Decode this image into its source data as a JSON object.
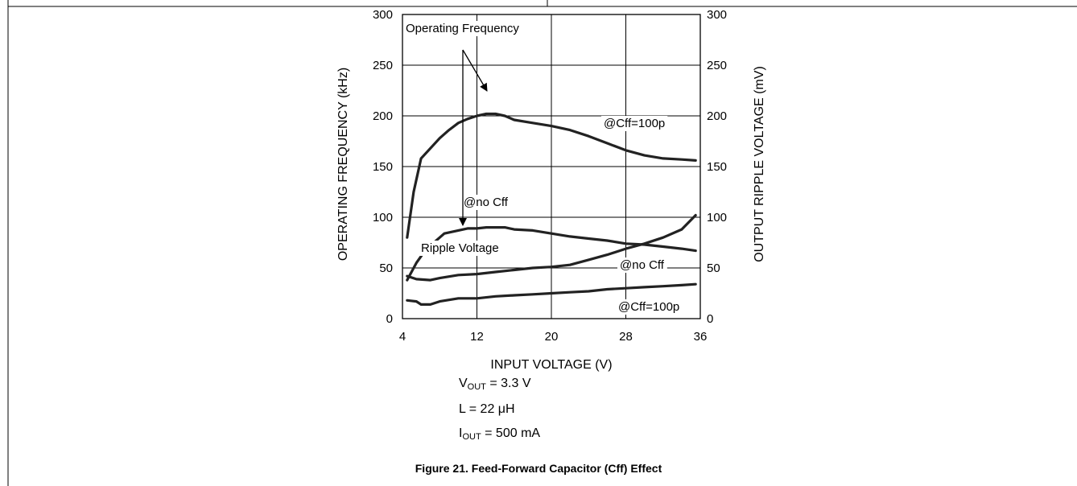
{
  "chart_data": {
    "type": "line",
    "xlabel": "INPUT VOLTAGE (V)",
    "ylabel_left": "OPERATING FREQUENCY (kHz)",
    "ylabel_right": "OUTPUT RIPPLE VOLTAGE (mV)",
    "xlim": [
      4,
      36
    ],
    "ylim": [
      0,
      300
    ],
    "x_ticks": [
      "4",
      "12",
      "20",
      "28",
      "36"
    ],
    "y_ticks": [
      "0",
      "50",
      "100",
      "150",
      "200",
      "250",
      "300"
    ],
    "grid": true,
    "series": [
      {
        "name": "@Cff=100p",
        "group": "Operating Frequency",
        "x": [
          4.5,
          5.2,
          6,
          7,
          8,
          9,
          10,
          11,
          12,
          13,
          14,
          15,
          16,
          18,
          20,
          22,
          24,
          26,
          28,
          30,
          32,
          34,
          35.5
        ],
        "y": [
          80,
          125,
          158,
          168,
          178,
          186,
          193,
          197,
          200,
          202,
          202,
          200,
          196,
          193,
          190,
          186,
          180,
          173,
          166,
          161,
          158,
          157,
          156
        ]
      },
      {
        "name": "@no Cff",
        "group": "Operating Frequency",
        "x": [
          4.5,
          5.5,
          6.5,
          7.5,
          8.5,
          10,
          11,
          12,
          13,
          14,
          15,
          16,
          18,
          20,
          22,
          24,
          26,
          28,
          30,
          32,
          34,
          35.5
        ],
        "y": [
          38,
          55,
          68,
          76,
          84,
          87,
          89,
          89,
          90,
          90,
          90,
          88,
          87,
          84,
          81,
          79,
          77,
          74,
          73,
          71,
          69,
          67
        ]
      },
      {
        "name": "@no Cff",
        "group": "Ripple Voltage",
        "x": [
          4.5,
          5.5,
          7,
          8,
          10,
          12,
          14,
          16,
          18,
          20,
          22,
          24,
          26,
          28,
          30,
          32,
          34,
          35.5
        ],
        "y": [
          42,
          39,
          38,
          40,
          43,
          44,
          46,
          48,
          50,
          51,
          53,
          58,
          63,
          69,
          74,
          80,
          88,
          102
        ]
      },
      {
        "name": "@Cff=100p",
        "group": "Ripple Voltage",
        "x": [
          4.5,
          5.5,
          6,
          7,
          8,
          10,
          12,
          14,
          16,
          18,
          20,
          22,
          24,
          26,
          28,
          30,
          32,
          34,
          35.5
        ],
        "y": [
          18,
          17,
          14,
          14,
          17,
          20,
          20,
          22,
          23,
          24,
          25,
          26,
          27,
          29,
          30,
          31,
          32,
          33,
          34
        ]
      }
    ],
    "annotations": [
      "Operating Frequency",
      "Ripple Voltage"
    ]
  },
  "conditions": {
    "vout": {
      "sym": "V",
      "sub": "OUT",
      "rest": " = 3.3 V"
    },
    "l": "L = 22 μH",
    "iout": {
      "sym": "I",
      "sub": "OUT",
      "rest": " = 500 mA"
    }
  },
  "caption": "Figure 21. Feed-Forward Capacitor (Cff) Effect"
}
